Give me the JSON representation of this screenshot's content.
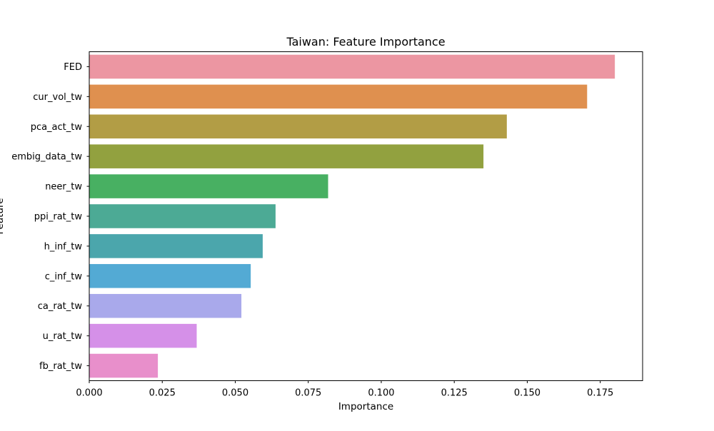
{
  "chart_data": {
    "type": "bar",
    "orientation": "horizontal",
    "title": "Taiwan: Feature Importance",
    "xlabel": "Importance",
    "ylabel": "Feature",
    "xlim": [
      0,
      0.1895
    ],
    "xticks": [
      0.0,
      0.025,
      0.05,
      0.075,
      0.1,
      0.125,
      0.15,
      0.175
    ],
    "xtick_labels": [
      "0.000",
      "0.025",
      "0.050",
      "0.075",
      "0.100",
      "0.125",
      "0.150",
      "0.175"
    ],
    "grid": false,
    "legend": false,
    "categories": [
      "FED",
      "cur_vol_tw",
      "pca_act_tw",
      "embig_data_tw",
      "neer_tw",
      "ppi_rat_tw",
      "h_inf_tw",
      "c_inf_tw",
      "ca_rat_tw",
      "u_rat_tw",
      "fb_rat_tw"
    ],
    "values": [
      0.18,
      0.1705,
      0.143,
      0.135,
      0.0818,
      0.0638,
      0.0594,
      0.0553,
      0.0521,
      0.0368,
      0.0235
    ],
    "colors": [
      "#ec96a2",
      "#df904f",
      "#b29d45",
      "#92a13f",
      "#48b062",
      "#4caa95",
      "#4ba6ac",
      "#53aad4",
      "#a9a9eb",
      "#d590e8",
      "#e88fcb"
    ]
  }
}
